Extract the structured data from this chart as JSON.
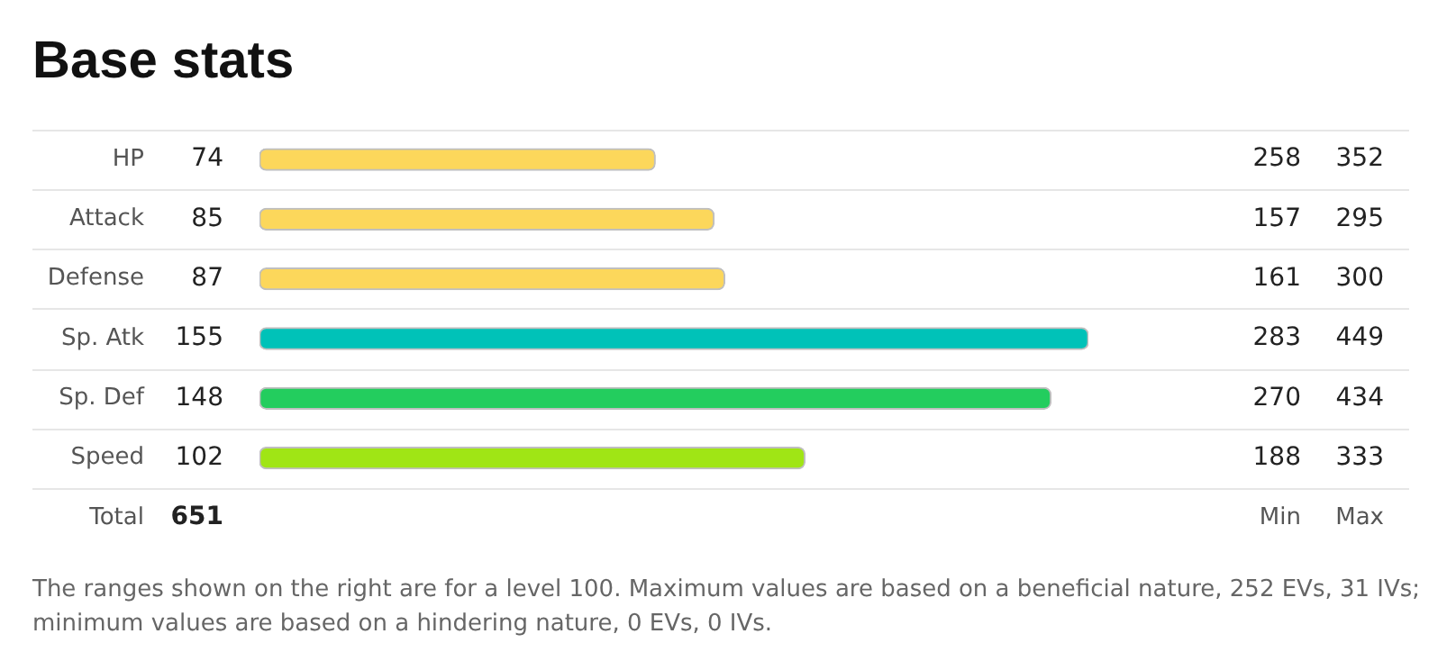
{
  "chart_data": {
    "type": "bar",
    "orientation": "horizontal",
    "title": "Base stats",
    "categories": [
      "HP",
      "Attack",
      "Defense",
      "Sp. Atk",
      "Sp. Def",
      "Speed",
      "Total"
    ],
    "series": [
      {
        "values": [
          74,
          85,
          87,
          155,
          148,
          102,
          null
        ],
        "colors": [
          "#fcd75b",
          "#fcd75b",
          "#fcd75b",
          "#00c2b8",
          "#23cd5e",
          "#a0e515",
          "#fcd75b"
        ],
        "value_labels": [
          "74",
          "85",
          "87",
          "155",
          "148",
          "102",
          "651"
        ]
      }
    ],
    "tick_labels": false,
    "grid": "y",
    "legend": false,
    "annotations": [
      "258",
      "352",
      "157",
      "295",
      "161",
      "300",
      "283",
      "449",
      "270",
      "434",
      "188",
      "333",
      "Min",
      "Max",
      "The ranges shown on the right are for a level 100. Maximum values are based on a beneficial nature, 252 EVs, 31 IVs; minimum values are based on a hindering nature, 0 EVs, 0 IVs."
    ]
  }
}
